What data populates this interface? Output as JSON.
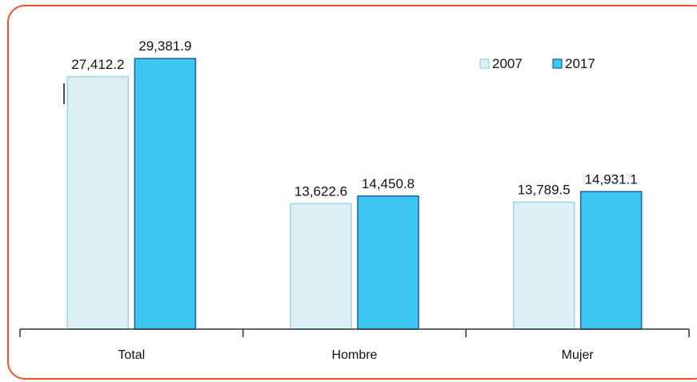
{
  "chart_data": {
    "type": "bar",
    "categories": [
      "Total",
      "Hombre",
      "Mujer"
    ],
    "series": [
      {
        "name": "2007",
        "values": [
          27412.2,
          13622.6,
          13789.5
        ],
        "labels": [
          "27,412.2",
          "13,622.6",
          "13,789.5"
        ],
        "color": "#dcf0f5",
        "stroke": "#9fd3e6"
      },
      {
        "name": "2017",
        "values": [
          29381.9,
          14450.8,
          14931.1
        ],
        "labels": [
          "29,381.9",
          "14,450.8",
          "14,931.1"
        ],
        "color": "#3ec6f2",
        "stroke": "#1a5fa8"
      }
    ],
    "ylim": [
      0,
      34000
    ],
    "grid": false,
    "legend_position": "top-right",
    "axis_color": "#333333"
  }
}
